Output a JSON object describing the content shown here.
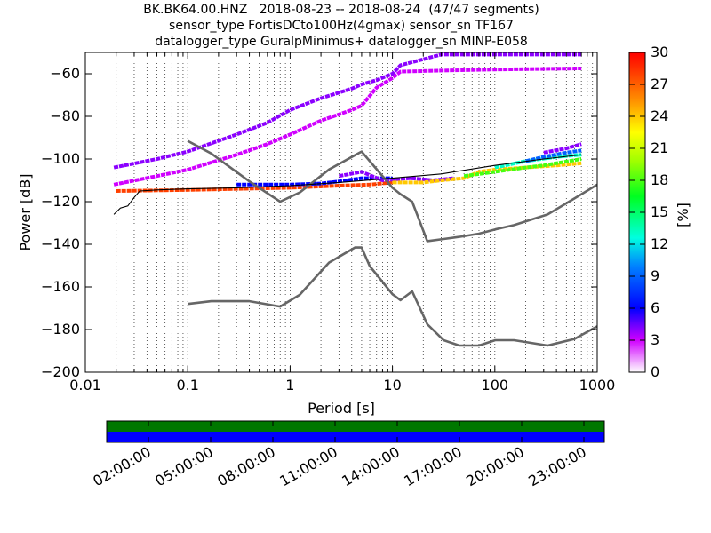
{
  "chart_data": {
    "type": "heatmap",
    "title_lines": [
      "BK.BK64.00.HNZ   2018-08-23 -- 2018-08-24  (47/47 segments)",
      "sensor_type FortisDCto100Hz(4gmax) sensor_sn TF167",
      "datalogger_type GuralpMinimus+ datalogger_sn MINP-E058"
    ],
    "xlabel": "Period [s]",
    "ylabel": "Power [dB]",
    "x_scale": "log",
    "xlim": [
      0.01,
      1000
    ],
    "ylim": [
      -200,
      -50
    ],
    "x_ticks": [
      0.01,
      0.1,
      1,
      10,
      100,
      1000
    ],
    "x_tick_labels": [
      "0.01",
      "0.1",
      "1",
      "10",
      "100",
      "1000"
    ],
    "y_ticks": [
      -200,
      -180,
      -160,
      -140,
      -120,
      -100,
      -80,
      -60
    ],
    "y_tick_labels": [
      "−200",
      "−180",
      "−160",
      "−140",
      "−120",
      "−100",
      "−80",
      "−60"
    ],
    "grid": "dotted vertical",
    "colorbar": {
      "label": "[%]",
      "range": [
        0,
        30
      ],
      "ticks": [
        0,
        3,
        6,
        9,
        12,
        15,
        18,
        21,
        24,
        27,
        30
      ],
      "tick_labels": [
        "0",
        "3",
        "6",
        "9",
        "12",
        "15",
        "18",
        "21",
        "24",
        "27",
        "30"
      ]
    },
    "noise_models": [
      {
        "curve": "upper",
        "points": [
          [
            0.1,
            -91.5
          ],
          [
            0.17,
            -97.4
          ],
          [
            0.4,
            -110.5
          ],
          [
            0.8,
            -120
          ],
          [
            1.24,
            -115.7
          ],
          [
            2.4,
            -104.9
          ],
          [
            4.3,
            -98.2
          ],
          [
            5,
            -96.5
          ],
          [
            6,
            -101
          ],
          [
            10,
            -113.5
          ],
          [
            12,
            -116.5
          ],
          [
            15.6,
            -120
          ],
          [
            21.9,
            -138.5
          ],
          [
            31.6,
            -137.5
          ],
          [
            45,
            -136.5
          ],
          [
            70,
            -135
          ],
          [
            101,
            -133
          ],
          [
            154,
            -131
          ],
          [
            328,
            -126
          ],
          [
            600,
            -118.5
          ],
          [
            1000,
            -112
          ]
        ]
      },
      {
        "curve": "lower",
        "points": [
          [
            0.1,
            -168
          ],
          [
            0.17,
            -166.7
          ],
          [
            0.4,
            -166.7
          ],
          [
            0.8,
            -169.2
          ],
          [
            1.24,
            -163.7
          ],
          [
            2.4,
            -148.6
          ],
          [
            4.3,
            -141.5
          ],
          [
            5,
            -141.5
          ],
          [
            6,
            -150.2
          ],
          [
            10,
            -163.4
          ],
          [
            12,
            -166.2
          ],
          [
            15.6,
            -162.1
          ],
          [
            21.9,
            -177.5
          ],
          [
            31.6,
            -185
          ],
          [
            45,
            -187.5
          ],
          [
            70,
            -187.5
          ],
          [
            101,
            -185
          ],
          [
            154,
            -185
          ],
          [
            328,
            -187.5
          ],
          [
            600,
            -184.4
          ],
          [
            1000,
            -178.5
          ]
        ]
      }
    ],
    "mode_curve": [
      [
        0.019,
        -126
      ],
      [
        0.022,
        -123
      ],
      [
        0.026,
        -122
      ],
      [
        0.03,
        -118
      ],
      [
        0.034,
        -115
      ],
      [
        0.05,
        -114.5
      ],
      [
        0.1,
        -114
      ],
      [
        0.3,
        -113.5
      ],
      [
        1,
        -112.5
      ],
      [
        3,
        -111
      ],
      [
        10,
        -109
      ],
      [
        30,
        -107
      ],
      [
        100,
        -103
      ],
      [
        300,
        -100
      ],
      [
        700,
        -98
      ]
    ],
    "density_bands": [
      {
        "points": [
          [
            0.019,
            -112
          ],
          [
            0.05,
            -108
          ],
          [
            0.1,
            -105
          ],
          [
            0.3,
            -98
          ],
          [
            0.6,
            -93
          ],
          [
            1,
            -88.5
          ],
          [
            2,
            -82
          ],
          [
            4,
            -77
          ],
          [
            5,
            -75
          ],
          [
            7,
            -66.5
          ],
          [
            10,
            -62
          ],
          [
            12,
            -59
          ],
          [
            30,
            -58.5
          ],
          [
            100,
            -58
          ],
          [
            700,
            -57.5
          ]
        ],
        "percent": 3
      },
      {
        "points": [
          [
            0.019,
            -104
          ],
          [
            0.05,
            -100
          ],
          [
            0.1,
            -96.5
          ],
          [
            0.3,
            -88.5
          ],
          [
            0.6,
            -83
          ],
          [
            1,
            -77
          ],
          [
            2,
            -71.5
          ],
          [
            4,
            -67
          ],
          [
            5,
            -65
          ],
          [
            7,
            -63
          ],
          [
            10,
            -60
          ],
          [
            12,
            -56
          ],
          [
            30,
            -51
          ],
          [
            700,
            -51
          ]
        ],
        "percent": 4
      },
      {
        "points": [
          [
            0.02,
            -115
          ],
          [
            0.1,
            -114.5
          ],
          [
            1,
            -113.5
          ],
          [
            3,
            -112.5
          ],
          [
            6,
            -112
          ],
          [
            10,
            -111
          ]
        ],
        "percent": 28
      },
      {
        "points": [
          [
            0.3,
            -112
          ],
          [
            1,
            -112
          ],
          [
            2,
            -111.5
          ],
          [
            3,
            -110.5
          ],
          [
            5,
            -109
          ],
          [
            10,
            -109
          ]
        ],
        "percent": 6
      },
      {
        "points": [
          [
            3,
            -108
          ],
          [
            5,
            -106
          ],
          [
            8,
            -110
          ],
          [
            15,
            -109
          ],
          [
            25,
            -110
          ],
          [
            40,
            -109
          ]
        ],
        "percent": 4
      },
      {
        "points": [
          [
            10,
            -111
          ],
          [
            20,
            -111
          ],
          [
            30,
            -110
          ],
          [
            50,
            -109
          ],
          [
            70,
            -106
          ],
          [
            100,
            -105
          ],
          [
            200,
            -104
          ],
          [
            400,
            -103
          ],
          [
            700,
            -102
          ]
        ],
        "percent": 24
      },
      {
        "points": [
          [
            50,
            -108
          ],
          [
            100,
            -106
          ],
          [
            200,
            -104
          ],
          [
            300,
            -103
          ],
          [
            700,
            -100
          ]
        ],
        "percent": 18
      },
      {
        "points": [
          [
            100,
            -104
          ],
          [
            200,
            -101
          ],
          [
            400,
            -99
          ],
          [
            700,
            -98
          ]
        ],
        "percent": 13
      },
      {
        "points": [
          [
            200,
            -101
          ],
          [
            300,
            -99
          ],
          [
            500,
            -97
          ],
          [
            700,
            -96
          ]
        ],
        "percent": 9
      },
      {
        "points": [
          [
            300,
            -97
          ],
          [
            500,
            -95
          ],
          [
            700,
            -93
          ]
        ],
        "percent": 4
      }
    ],
    "timeline": {
      "tick_labels": [
        "02:00:00",
        "05:00:00",
        "08:00:00",
        "11:00:00",
        "14:00:00",
        "17:00:00",
        "20:00:00",
        "23:00:00"
      ],
      "track_colors": [
        "#007700",
        "#0000ff"
      ]
    }
  }
}
